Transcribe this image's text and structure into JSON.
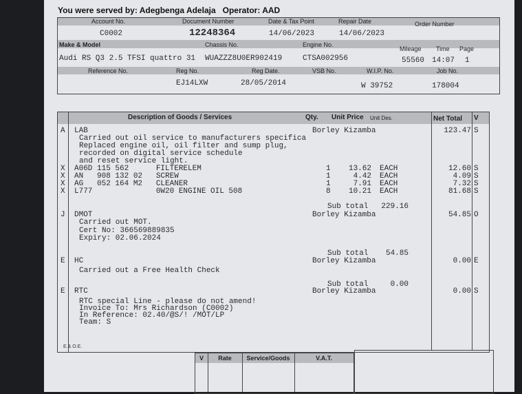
{
  "served_by": "You were served by: Adegbenga Adelaja",
  "operator": "Operator: AAD",
  "row1": {
    "labels": [
      "Account No.",
      "Document Number",
      "Date & Tax Point",
      "Repair Date",
      "Order Number"
    ],
    "values": [
      "C0002",
      "12248364",
      "14/06/2023",
      "14/06/2023",
      ""
    ]
  },
  "row2": {
    "labels": [
      "Make & Model",
      "Chassis No.",
      "Engine No.",
      "Mileage",
      "Time",
      "Page"
    ],
    "values": [
      "Audi RS Q3 2.5 TFSI quattro 31",
      "WUAZZZ8U0ER902419",
      "CTSA002956",
      "55560",
      "14:07",
      "1"
    ]
  },
  "row3": {
    "labels": [
      "Reference No.",
      "Reg No.",
      "Reg Date.",
      "VSB No.",
      "W.I.P. No.",
      "Job No."
    ],
    "values": [
      "",
      "EJ14LXW",
      "28/05/2014",
      "",
      "W 39752",
      "178004"
    ]
  },
  "columns": {
    "desc": "Description of Goods / Services",
    "qty": "Qty.",
    "unit_price": "Unit Price",
    "unit_des": "Unit Des.",
    "net": "Net Total",
    "v": "V"
  },
  "lines": [
    {
      "code": "A",
      "text": "LAB",
      "tech": "Borley Kizamba",
      "net": "123.47",
      "v": "S"
    },
    {
      "text": "Carried out oil service to manufacturers specifica"
    },
    {
      "text": "Replaced engine oil, oil filter and sump plug,"
    },
    {
      "text": "recorded on digital service schedule"
    },
    {
      "text": "and reset service light."
    },
    {
      "code": "X",
      "text": "A06D 115 562      FILTERELEM",
      "qty": "1",
      "price": "13.62",
      "unit": "EACH",
      "net": "12.60",
      "v": "S"
    },
    {
      "code": "X",
      "text": "AN   908 132 02   SCREW",
      "qty": "1",
      "price": "4.42",
      "unit": "EACH",
      "net": "4.09",
      "v": "S"
    },
    {
      "code": "X",
      "text": "AG   052 164 M2   CLEANER",
      "qty": "1",
      "price": "7.91",
      "unit": "EACH",
      "net": "7.32",
      "v": "S"
    },
    {
      "code": "X",
      "text": "L777              0W20 ENGINE OIL 508",
      "qty": "8",
      "price": "10.21",
      "unit": "EACH",
      "net": "81.68",
      "v": "S"
    },
    {
      "sub": "Sub total",
      "subval": "229.16"
    },
    {
      "code": "J",
      "text": "DMOT",
      "tech": "Borley Kizamba",
      "net": "54.85",
      "v": "O"
    },
    {
      "text": "Carried out MOT."
    },
    {
      "text": "Cert No: 366569889835"
    },
    {
      "text": "Expiry: 02.06.2024"
    },
    {
      "sub": "Sub total",
      "subval": "54.85"
    },
    {
      "code": "E",
      "text": "HC",
      "tech": "Borley Kizamba",
      "net": "0.00",
      "v": "E"
    },
    {
      "text": "Carried out a Free Health Check"
    },
    {
      "sub": "Sub total",
      "subval": "0.00"
    },
    {
      "code": "E",
      "text": "RTC",
      "tech": "Borley Kizamba",
      "net": "0.00",
      "v": "S"
    },
    {
      "text": "RTC special Line - please do not amend!"
    },
    {
      "text": "Invoice To: Mrs Richardson (C0002)"
    },
    {
      "text": "In Reference: 02.40/@S/! /MOT/LP"
    },
    {
      "text": "Team: S"
    }
  ],
  "eoe": "E.& O.E.",
  "vat_table": {
    "headers": [
      "V",
      "Rate",
      "Service/Goods",
      "V.A.T."
    ]
  }
}
